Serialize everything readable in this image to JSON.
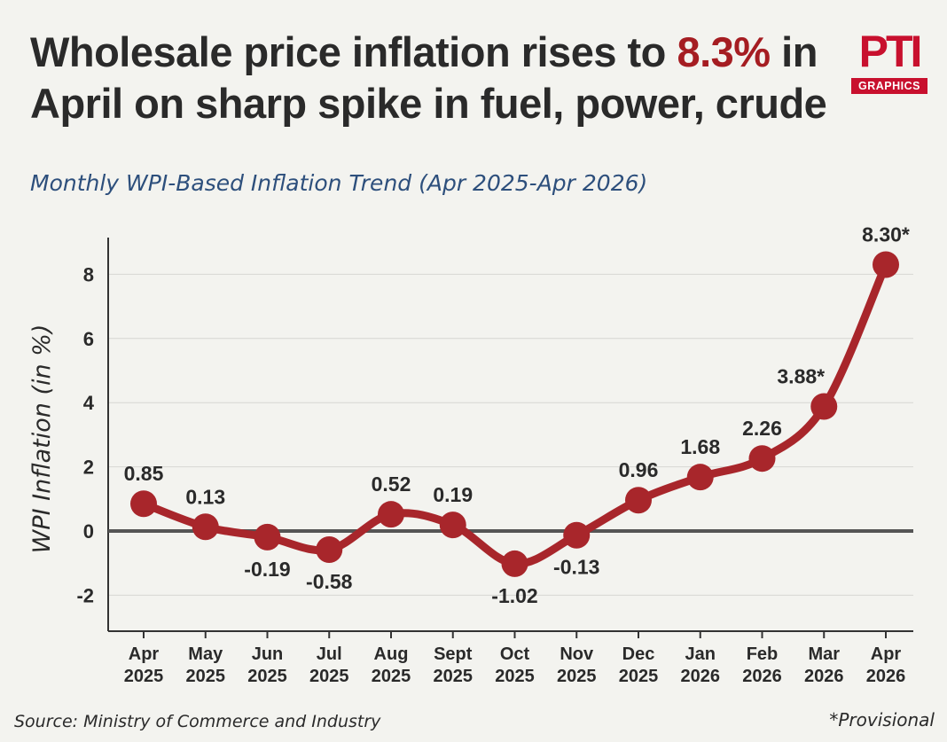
{
  "header": {
    "title_part1": "Wholesale price inflation rises to ",
    "title_highlight": "8.3%",
    "title_part2": " in April on sharp spike in fuel, power, crude",
    "subtitle": "Monthly WPI-Based Inflation Trend (Apr 2025-Apr 2026)"
  },
  "logo": {
    "mark": "PTI",
    "tag": "GRAPHICS"
  },
  "footer": {
    "source": "Source: Ministry of Commerce and Industry",
    "note": "*Provisional"
  },
  "colors": {
    "line": "#a8262b",
    "highlight": "#a51d22",
    "subtitle": "#2d4f7c",
    "zero_line": "#555555",
    "grid": "#d6d6d2",
    "text": "#2a2a2a"
  },
  "chart_data": {
    "type": "line",
    "title": "",
    "xlabel": "",
    "ylabel": "WPI Inflation (in %)",
    "categories": [
      [
        "Apr",
        "2025"
      ],
      [
        "May",
        "2025"
      ],
      [
        "Jun",
        "2025"
      ],
      [
        "Jul",
        "2025"
      ],
      [
        "Aug",
        "2025"
      ],
      [
        "Sept",
        "2025"
      ],
      [
        "Oct",
        "2025"
      ],
      [
        "Nov",
        "2025"
      ],
      [
        "Dec",
        "2025"
      ],
      [
        "Jan",
        "2026"
      ],
      [
        "Feb",
        "2026"
      ],
      [
        "Mar",
        "2026"
      ],
      [
        "Apr",
        "2026"
      ]
    ],
    "values": [
      0.85,
      0.13,
      -0.19,
      -0.58,
      0.52,
      0.19,
      -1.02,
      -0.13,
      0.96,
      1.68,
      2.26,
      3.88,
      8.3
    ],
    "data_labels": [
      "0.85",
      "0.13",
      "-0.19",
      "-0.58",
      "0.52",
      "0.19",
      "-1.02",
      "-0.13",
      "0.96",
      "1.68",
      "2.26",
      "3.88*",
      "8.30*"
    ],
    "label_positions": [
      "above",
      "above",
      "below",
      "below",
      "above",
      "above",
      "below",
      "below",
      "above",
      "above",
      "above",
      "above",
      "above"
    ],
    "ylim": [
      -3,
      9
    ],
    "yticks": [
      -2,
      0,
      2,
      4,
      6,
      8
    ],
    "grid": true,
    "smooth": true
  }
}
